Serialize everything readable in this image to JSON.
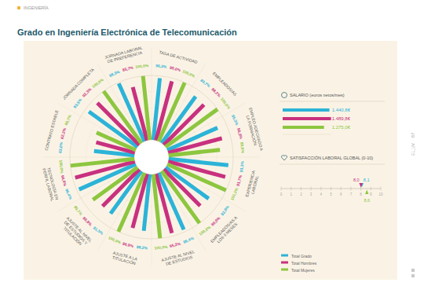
{
  "page": {
    "section": "INGENIERÍA",
    "page_number": "87",
    "side_label": "EL_UV"
  },
  "chart_data": [
    {
      "type": "radial_bar",
      "title": "Grado en Ingeniería Electrónica de Telecomunicación",
      "categories": [
        "TASA DE ACTIVIDAD",
        "EMPLEADOS/AS",
        "EMPLEO ADECUADO A LA FORMACIÓN",
        "EXPERIENCIA LABORAL",
        "EMPLEADOS/AS A LOS 6 MESES",
        "AJUSTE AL NIVEL DE ESTUDIOS",
        "AJUSTE A LA TITULACIÓN",
        "AJUSTE AL NIVEL DE ESTUDIOS Y TITULACIÓN",
        "TECNOLOGÍA EN PERFIL LABORAL",
        "CONTRATO ESTABLE",
        "JORNADA COMPLETA",
        "JORNADA LABORAL DE PREFERENCIA"
      ],
      "series": [
        {
          "name": "Total Grado",
          "color": "#2cb3d8",
          "values": [
            96.3,
            89.7,
            85.3,
            93.1,
            82.9,
            96.4,
            88.2,
            81.5,
            96.4,
            63.0,
            93.5,
            98.3
          ],
          "value_labels": [
            "96,3%",
            "89,7%",
            "85,3%",
            "93,1%",
            "82,9%",
            "96,4%",
            "88,2%",
            "81,5%",
            "96,4%",
            "63,0%",
            "93,5%",
            "98,3%"
          ]
        },
        {
          "name": "Total Hombres",
          "color": "#c8317f",
          "values": [
            95.0,
            88.2,
            86.3,
            91.7,
            80.0,
            95.2,
            86.9,
            80.8,
            96.0,
            62.2,
            92.3,
            85.7
          ],
          "value_labels": [
            "95,0%",
            "88,2%",
            "86,3%",
            "91,7%",
            "80,0%",
            "95,2%",
            "86,9%",
            "80,8%",
            "96,0%",
            "62,2%",
            "92,3%",
            "85,7%"
          ]
        },
        {
          "name": "Total Mujeres",
          "color": "#8dc63f",
          "values": [
            100.0,
            100.0,
            80.0,
            100.0,
            100.0,
            100.0,
            100.0,
            85.7,
            100.0,
            66.7,
            100.0,
            100.0
          ],
          "value_labels": [
            "100,0%",
            "100,0%",
            "80,0%",
            "100,0%",
            "100,0%",
            "100,0%",
            "100,0%",
            "85,7%",
            "100,0%",
            "66,7%",
            "100,0%",
            "100,0%"
          ]
        }
      ],
      "ylim": [
        0,
        100
      ],
      "yticks": [
        0,
        25,
        50,
        75,
        100
      ],
      "grid": true,
      "tick_labels": false,
      "data_labels": true,
      "legend": "lower right"
    },
    {
      "type": "bar",
      "title": "SALARIO (euros netos/mes)",
      "orientation": "horizontal",
      "series": [
        {
          "color": "#2cb3d8",
          "values": [
            1440.8
          ],
          "value_labels": [
            "1.440,8€"
          ]
        },
        {
          "color": "#c8317f",
          "values": [
            1489.8
          ],
          "value_labels": [
            "1.489,8€"
          ]
        },
        {
          "color": "#8dc63f",
          "values": [
            1275.0
          ],
          "value_labels": [
            "1.275,0€"
          ]
        }
      ],
      "xlim": [
        0,
        1500
      ],
      "tick_labels": false,
      "data_labels": true
    },
    {
      "type": "dot",
      "title": "SATISFACCIÓN LABORAL GLOBAL (0-10)",
      "orientation": "horizontal",
      "series": [
        {
          "color": "#2cb3d8",
          "marker": "triangle",
          "values": [
            8.1
          ],
          "value_labels": [
            "8,1"
          ]
        },
        {
          "color": "#c8317f",
          "marker": "triangle",
          "values": [
            8.0
          ],
          "value_labels": [
            "8,0"
          ]
        },
        {
          "color": "#8dc63f",
          "marker": "triangle",
          "values": [
            8.6
          ],
          "value_labels": [
            "8,6"
          ]
        }
      ],
      "xlim": [
        0,
        10
      ],
      "xticks": [
        0,
        1,
        2,
        3,
        4,
        5,
        6,
        7,
        8,
        9,
        10
      ],
      "data_labels": true
    }
  ]
}
